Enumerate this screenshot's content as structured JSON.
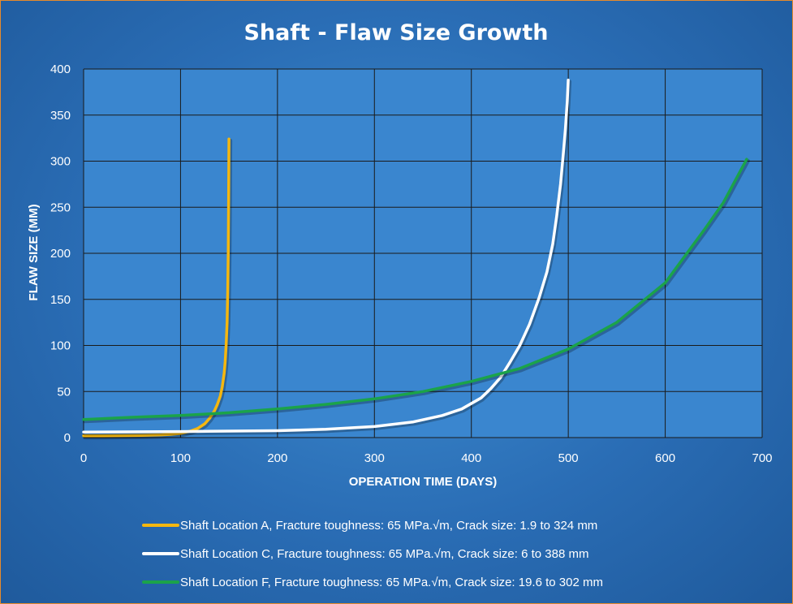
{
  "chart_data": {
    "type": "line",
    "title": "Shaft - Flaw Size Growth",
    "xlabel": "OPERATION TIME (DAYS)",
    "ylabel": "FLAW SIZE (MM)",
    "xlim": [
      0,
      700
    ],
    "ylim": [
      0,
      400
    ],
    "xticks": [
      "0",
      "100",
      "200",
      "300",
      "400",
      "500",
      "600",
      "700"
    ],
    "yticks": [
      "0",
      "50",
      "100",
      "150",
      "200",
      "250",
      "300",
      "350",
      "400"
    ],
    "grid": true,
    "legend_position": "bottom",
    "colors": {
      "background": "#2a6db5",
      "plot_area": "#3a86cf",
      "grid": "#1a1a1a"
    },
    "series": [
      {
        "name": "Shaft Location A, Fracture toughness: 65 MPa.√m, Crack size: 1.9 to 324 mm",
        "color": "#f5b70f",
        "x": [
          0,
          20,
          40,
          60,
          80,
          90,
          100,
          110,
          118,
          125,
          130,
          135,
          138,
          141,
          143,
          145,
          146,
          147,
          148,
          148.7,
          149.2,
          149.6,
          150
        ],
        "y": [
          1.9,
          2.0,
          2.2,
          2.5,
          3.0,
          3.5,
          4.5,
          7,
          10,
          15,
          21,
          29,
          36,
          45,
          55,
          70,
          82,
          100,
          125,
          160,
          200,
          260,
          324
        ]
      },
      {
        "name": "Shaft Location C, Fracture toughness: 65 MPa.√m, Crack size: 6 to 388 mm",
        "color": "#ffffff",
        "x": [
          0,
          100,
          200,
          250,
          300,
          340,
          370,
          390,
          410,
          420,
          430,
          440,
          450,
          460,
          470,
          478,
          484,
          488,
          492,
          495,
          497,
          499,
          500
        ],
        "y": [
          6,
          6.5,
          7.5,
          9,
          12,
          17,
          24,
          31,
          43,
          53,
          65,
          82,
          100,
          123,
          152,
          180,
          210,
          240,
          275,
          310,
          335,
          365,
          388
        ]
      },
      {
        "name": "Shaft Location F, Fracture toughness: 65 MPa.√m, Crack size: 19.6 to 302 mm",
        "color": "#1ba34a",
        "x": [
          0,
          50,
          100,
          150,
          200,
          250,
          300,
          350,
          400,
          450,
          500,
          550,
          600,
          640,
          660,
          684
        ],
        "y": [
          19.6,
          22,
          24,
          27,
          31,
          36,
          42,
          50,
          61,
          75,
          96,
          125,
          168,
          225,
          255,
          302
        ]
      }
    ]
  }
}
